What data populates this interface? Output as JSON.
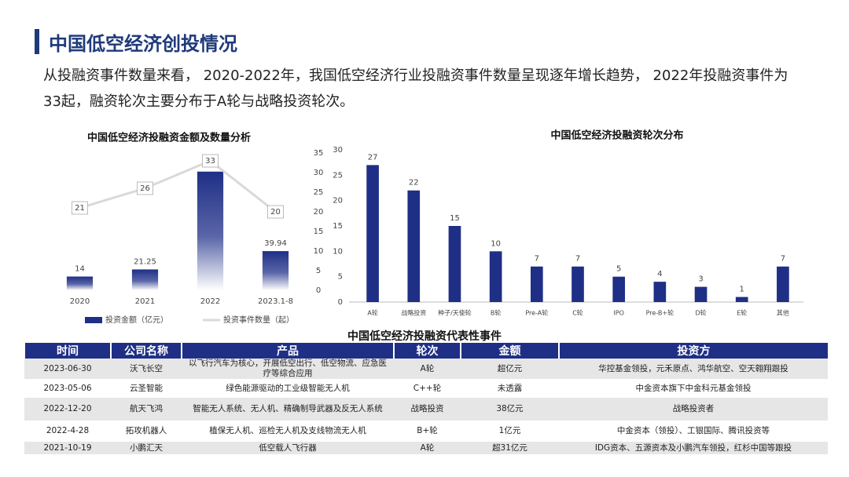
{
  "header": {
    "title": "中国低空经济创投情况"
  },
  "intro": "从投融资事件数量来看， 2020-2022年，我国低空经济行业投融资事件数量呈现逐年增长趋势， 2022年投融资事件为33起，融资轮次主要分布于A轮与战略投资轮次。",
  "chart_data": [
    {
      "type": "bar",
      "title": "中国低空经济投融资金额及数量分析",
      "categories": [
        "2020",
        "2021",
        "2022",
        "2023.1-8"
      ],
      "series": [
        {
          "name": "投资金额（亿元）",
          "color": "#1f2f86",
          "values": [
            14,
            21.25,
            121,
            39.94
          ]
        },
        {
          "name": "投资事件数量（起）",
          "type": "line",
          "axis": "y2",
          "color": "#d9d9d9",
          "values": [
            21,
            26,
            33,
            20
          ]
        }
      ],
      "ylim": [
        0,
        140
      ],
      "y2lim": [
        0,
        35
      ],
      "y2ticks": [
        0,
        5,
        10,
        15,
        20,
        25,
        30,
        35
      ],
      "gradient": true,
      "legend": "bottom"
    },
    {
      "type": "bar",
      "title": "中国低空经济投融资轮次分布",
      "categories": [
        "A轮",
        "战略投资",
        "种子/天使轮",
        "B轮",
        "Pre-A轮",
        "C轮",
        "IPO",
        "Pre-B+轮",
        "D轮",
        "E轮",
        "其他"
      ],
      "values": [
        27,
        22,
        15,
        10,
        7,
        7,
        5,
        4,
        3,
        1,
        7
      ],
      "color": "#1f2f86",
      "ylim": [
        0,
        30
      ],
      "yticks": [
        0,
        5,
        10,
        15,
        20,
        25,
        30
      ]
    }
  ],
  "table": {
    "title": "中国低空经济投融资代表性事件",
    "columns": [
      "时间",
      "公司名称",
      "产品",
      "轮次",
      "金额",
      "投资方"
    ],
    "rows": [
      [
        "2023-06-30",
        "沃飞长空",
        "以飞行汽车为核心，开展低空出行、低空物流、应急医疗等综合应用",
        "A轮",
        "超亿元",
        "华控基金领投，元禾原点、鸿华航空、空天翱翔跟投"
      ],
      [
        "2023-05-06",
        "云圣智能",
        "绿色能源驱动的工业级智能无人机",
        "C++轮",
        "未透露",
        "中金资本旗下中金科元基金领投"
      ],
      [
        "2022-12-20",
        "航天飞鸿",
        "智能无人系统、无人机、精确制导武器及反无人系统",
        "战略投资",
        "38亿元",
        "战略投资者"
      ],
      [
        "2022-4-28",
        "拓攻机器人",
        "植保无人机、巡检无人机及支线物流无人机",
        "B+轮",
        "1亿元",
        "中金资本（领投）、工银国际、腾讯投资等"
      ],
      [
        "2021-10-19",
        "小鹏汇天",
        "低空载人飞行器",
        "A轮",
        "超31亿元",
        "IDG资本、五源资本及小鹏汽车领投，红杉中国等跟投"
      ]
    ]
  }
}
